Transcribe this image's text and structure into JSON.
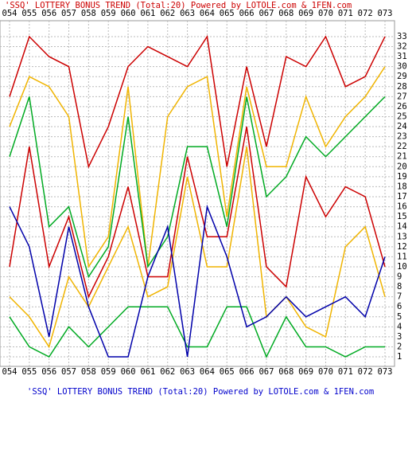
{
  "chart_data": {
    "type": "line",
    "title": "'SSQ' LOTTERY BONUS TREND (Total:20)  Powered by LOTOLE.com & 1FEN.com",
    "categories": [
      "054",
      "055",
      "056",
      "057",
      "058",
      "059",
      "060",
      "061",
      "062",
      "063",
      "064",
      "065",
      "066",
      "067",
      "068",
      "069",
      "070",
      "071",
      "072",
      "073"
    ],
    "series": [
      {
        "color": "#cc0000",
        "values": [
          27,
          33,
          31,
          30,
          20,
          24,
          30,
          32,
          31,
          30,
          33,
          20,
          30,
          22,
          31,
          30,
          33,
          28,
          29,
          33
        ]
      },
      {
        "color": "#f0b400",
        "values": [
          24,
          29,
          28,
          25,
          10,
          13,
          28,
          10,
          25,
          28,
          29,
          15,
          28,
          20,
          20,
          27,
          22,
          25,
          27,
          30
        ]
      },
      {
        "color": "#00aa22",
        "values": [
          21,
          27,
          14,
          16,
          9,
          12,
          25,
          10,
          13,
          22,
          22,
          14,
          27,
          17,
          19,
          23,
          21,
          23,
          25,
          27
        ]
      },
      {
        "color": "#cc0000",
        "values": [
          10,
          22,
          10,
          15,
          7,
          11,
          18,
          9,
          9,
          21,
          13,
          13,
          24,
          10,
          8,
          19,
          15,
          18,
          17,
          10
        ]
      },
      {
        "color": "#f0b400",
        "values": [
          7,
          5,
          2,
          9,
          6,
          10,
          14,
          7,
          8,
          19,
          10,
          10,
          22,
          5,
          7,
          4,
          3,
          12,
          14,
          7
        ]
      },
      {
        "color": "#00aa22",
        "values": [
          5,
          2,
          1,
          4,
          2,
          4,
          6,
          6,
          6,
          2,
          2,
          6,
          6,
          1,
          5,
          2,
          2,
          1,
          2,
          2
        ]
      },
      {
        "color": "#0000aa",
        "values": [
          16,
          12,
          3,
          14,
          6,
          1,
          1,
          9,
          14,
          1,
          16,
          11,
          4,
          5,
          7,
          5,
          6,
          7,
          5,
          11
        ]
      }
    ],
    "ylim": [
      0,
      34
    ],
    "yticks": [
      1,
      2,
      3,
      4,
      5,
      6,
      7,
      8,
      9,
      10,
      11,
      12,
      13,
      14,
      15,
      16,
      17,
      18,
      19,
      20,
      21,
      22,
      23,
      24,
      25,
      26,
      27,
      28,
      29,
      30,
      31,
      32,
      33
    ],
    "grid": true
  }
}
